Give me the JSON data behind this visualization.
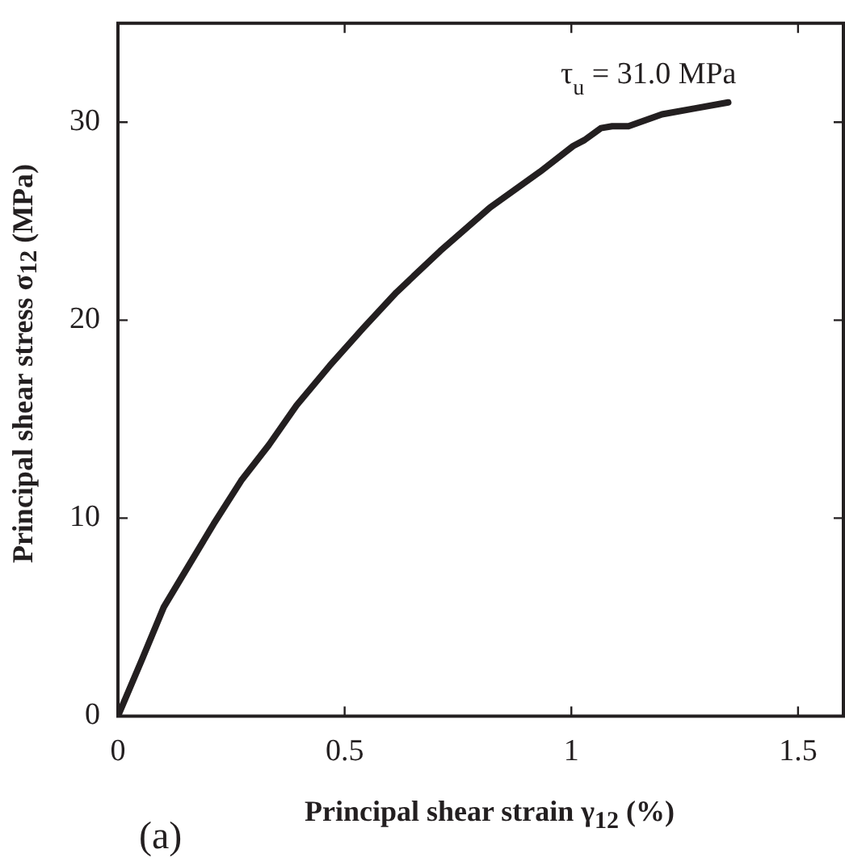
{
  "chart_data": {
    "type": "line",
    "xlabel": "Principal shear strain γ$_{12}$ (%)",
    "ylabel": "Principal shear stress σ$_{12}$ (MPa)",
    "x": [
      0,
      0.052,
      0.101,
      0.156,
      0.211,
      0.272,
      0.333,
      0.394,
      0.467,
      0.541,
      0.614,
      0.711,
      0.821,
      0.931,
      1.004,
      1.029,
      1.065,
      1.09,
      1.126,
      1.2,
      1.273,
      1.346
    ],
    "values": [
      0,
      2.8,
      5.5,
      7.6,
      9.7,
      11.9,
      13.7,
      15.7,
      17.7,
      19.6,
      21.4,
      23.5,
      25.7,
      27.5,
      28.8,
      29.1,
      29.7,
      29.8,
      29.8,
      30.4,
      30.7,
      31.0
    ],
    "color": "#231f20",
    "xlim": [
      0,
      1.6
    ],
    "ylim": [
      0,
      35
    ],
    "xticks": [
      0,
      0.5,
      1,
      1.5
    ],
    "yticks": [
      0,
      10,
      20,
      30
    ],
    "grid": false,
    "legend": false,
    "annotations": [
      {
        "text": "τ$_{u}$ = 31.0 MPa",
        "x": 1.346,
        "y": 31.0
      },
      "(a)"
    ]
  }
}
